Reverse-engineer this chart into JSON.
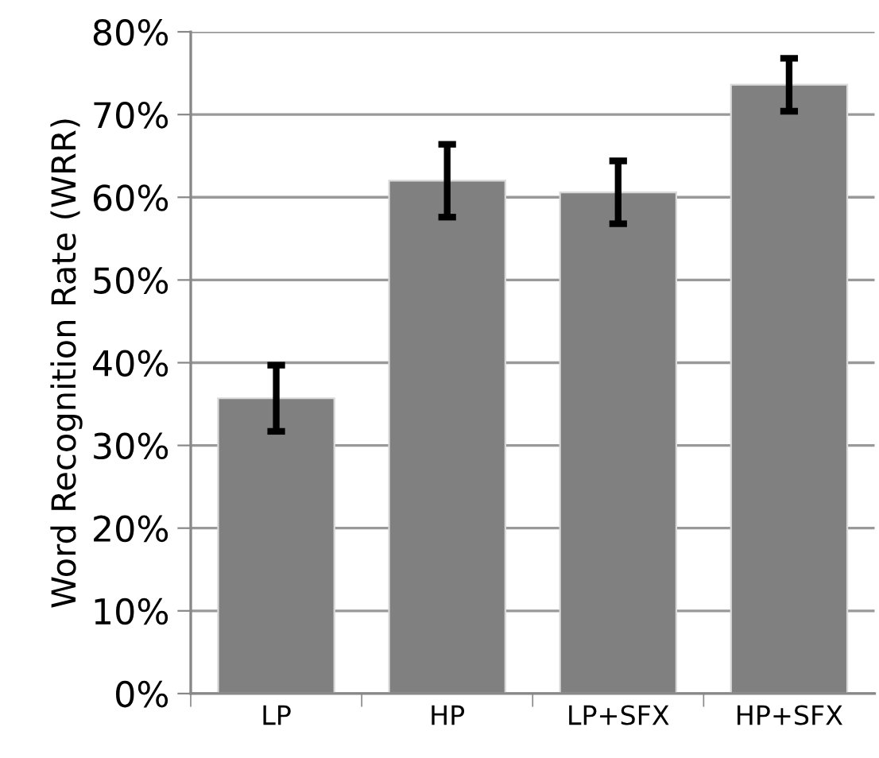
{
  "chart_data": {
    "type": "bar",
    "ylabel": "Word Recognition Rate (WRR)",
    "categories": [
      "LP",
      "HP",
      "LP+SFX",
      "HP+SFX"
    ],
    "values": [
      35.7,
      62.0,
      60.6,
      73.6
    ],
    "errors": [
      4.0,
      4.4,
      3.8,
      3.2
    ],
    "color": "#808080",
    "ylim": [
      0,
      80
    ],
    "yticks": [
      {
        "value": 0,
        "label": "0%"
      },
      {
        "value": 10,
        "label": "10%"
      },
      {
        "value": 20,
        "label": "20%"
      },
      {
        "value": 30,
        "label": "30%"
      },
      {
        "value": 40,
        "label": "40%"
      },
      {
        "value": 50,
        "label": "50%"
      },
      {
        "value": 60,
        "label": "60%"
      },
      {
        "value": 70,
        "label": "70%"
      },
      {
        "value": 80,
        "label": "80%"
      }
    ],
    "grid": "y"
  }
}
